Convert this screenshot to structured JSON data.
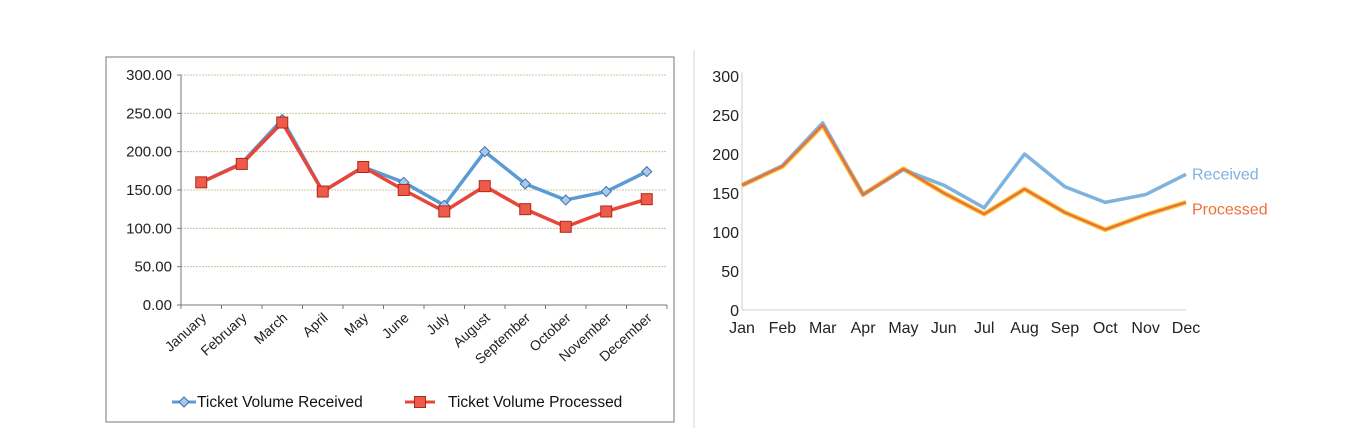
{
  "chart_data": [
    {
      "type": "line",
      "title": "",
      "xlabel": "",
      "ylabel": "",
      "ylim": [
        0,
        300
      ],
      "yticks": [
        "0.00",
        "50.00",
        "100.00",
        "150.00",
        "200.00",
        "250.00",
        "300.00"
      ],
      "categories": [
        "January",
        "February",
        "March",
        "April",
        "May",
        "June",
        "July",
        "August",
        "September",
        "October",
        "November",
        "December"
      ],
      "series": [
        {
          "name": "Ticket Volume Received",
          "color": "#5b9bd5",
          "marker": "diamond",
          "values": [
            160,
            185,
            242,
            148,
            180,
            160,
            130,
            200,
            158,
            137,
            148,
            174
          ]
        },
        {
          "name": "Ticket Volume Processed",
          "color": "#e8463a",
          "marker": "square",
          "values": [
            160,
            184,
            238,
            148,
            180,
            150,
            122,
            155,
            125,
            102,
            122,
            138
          ]
        }
      ],
      "grid": true,
      "legend": "bottom"
    },
    {
      "type": "line",
      "title": "",
      "xlabel": "",
      "ylabel": "",
      "ylim": [
        0,
        300
      ],
      "yticks": [
        "0",
        "50",
        "100",
        "150",
        "200",
        "250",
        "300"
      ],
      "categories": [
        "Jan",
        "Feb",
        "Mar",
        "Apr",
        "May",
        "Jun",
        "Jul",
        "Aug",
        "Sep",
        "Oct",
        "Nov",
        "Dec"
      ],
      "series": [
        {
          "name": "Received",
          "color": "#7fb2dd",
          "values": [
            160,
            185,
            240,
            148,
            180,
            160,
            131,
            200,
            158,
            138,
            148,
            174
          ]
        },
        {
          "name": "Processed",
          "color": "#ee6f3a",
          "values": [
            160,
            184,
            237,
            148,
            181,
            150,
            123,
            155,
            125,
            103,
            122,
            138
          ]
        }
      ],
      "grid": false,
      "legend": "direct labels at line ends"
    }
  ]
}
